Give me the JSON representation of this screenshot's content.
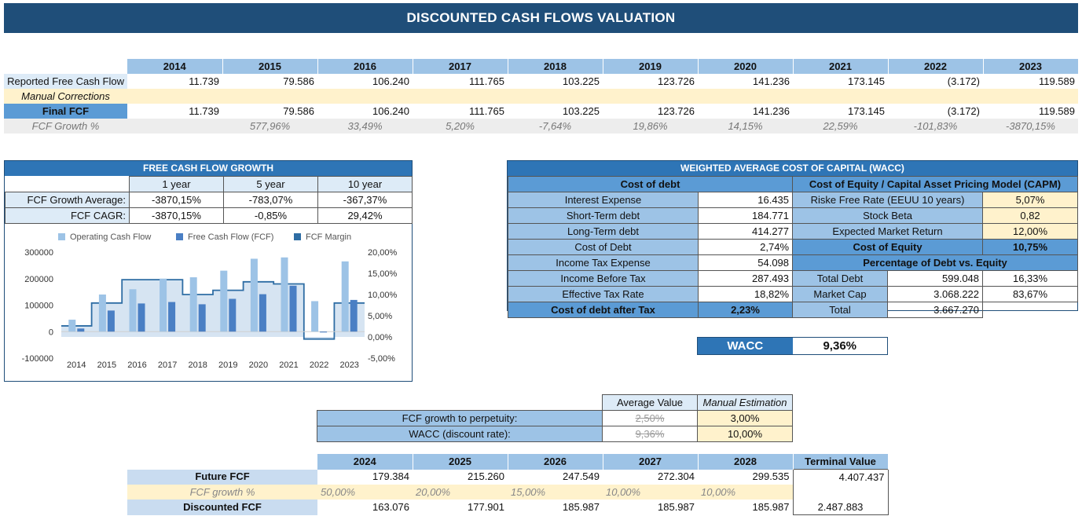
{
  "title": "DISCOUNTED CASH FLOWS VALUATION",
  "history": {
    "years": [
      "2014",
      "2015",
      "2016",
      "2017",
      "2018",
      "2019",
      "2020",
      "2021",
      "2022",
      "2023"
    ],
    "rows": [
      {
        "label": "Reported Free Cash Flow",
        "values": [
          "11.739",
          "79.586",
          "106.240",
          "111.765",
          "103.225",
          "123.726",
          "141.236",
          "173.145",
          "(3.172)",
          "119.589"
        ]
      },
      {
        "label": "Manual Corrections",
        "values": [
          "",
          "",
          "",
          "",
          "",
          "",
          "",
          "",
          "",
          ""
        ]
      },
      {
        "label": "Final FCF",
        "values": [
          "11.739",
          "79.586",
          "106.240",
          "111.765",
          "103.225",
          "123.726",
          "141.236",
          "173.145",
          "(3.172)",
          "119.589"
        ]
      },
      {
        "label": "FCF Growth %",
        "values": [
          "",
          "577,96%",
          "33,49%",
          "5,20%",
          "-7,64%",
          "19,86%",
          "14,15%",
          "22,59%",
          "-101,83%",
          "-3870,15%"
        ]
      }
    ]
  },
  "fcf_growth": {
    "title": "FREE CASH FLOW GROWTH",
    "columns": [
      "1 year",
      "5 year",
      "10 year"
    ],
    "rows": [
      {
        "label": "FCF Growth Average:",
        "values": [
          "-3870,15%",
          "-783,07%",
          "-367,37%"
        ]
      },
      {
        "label": "FCF CAGR:",
        "values": [
          "-3870,15%",
          "-0,85%",
          "29,42%"
        ]
      }
    ]
  },
  "chart_data": {
    "type": "bar",
    "categories": [
      "2014",
      "2015",
      "2016",
      "2017",
      "2018",
      "2019",
      "2020",
      "2021",
      "2022",
      "2023"
    ],
    "series": [
      {
        "name": "Operating Cash Flow",
        "type": "bar",
        "axis": "left",
        "color": "#9dc3e6",
        "values": [
          45000,
          140000,
          160000,
          200000,
          205000,
          230000,
          275000,
          280000,
          115000,
          265000
        ]
      },
      {
        "name": "Free Cash Flow (FCF)",
        "type": "bar",
        "axis": "left",
        "color": "#4a7fc4",
        "values": [
          11739,
          79586,
          106240,
          111765,
          103225,
          123726,
          141236,
          173145,
          -3172,
          119589
        ]
      },
      {
        "name": "FCF Margin",
        "type": "step-area",
        "axis": "right",
        "color": "#2e6da4",
        "values": [
          0.026,
          0.08,
          0.135,
          0.135,
          0.1,
          0.11,
          0.13,
          0.125,
          -0.005,
          0.08
        ]
      }
    ],
    "y_left": {
      "min": -100000,
      "max": 300000,
      "ticks": [
        "-100000",
        "0",
        "100000",
        "200000",
        "300000"
      ]
    },
    "y_right": {
      "min": -0.05,
      "max": 0.2,
      "ticks": [
        "-5,00%",
        "0,00%",
        "5,00%",
        "10,00%",
        "15,00%",
        "20,00%"
      ]
    },
    "legend": "top"
  },
  "wacc": {
    "title": "WEIGHTED AVERAGE COST OF CAPITAL (WACC)",
    "debt_header": "Cost of debt",
    "debt_rows": [
      {
        "label": "Interest Expense",
        "value": "16.435"
      },
      {
        "label": "Short-Term debt",
        "value": "184.771"
      },
      {
        "label": "Long-Term debt",
        "value": "414.277"
      },
      {
        "label": "Cost of Debt",
        "value": "2,74%"
      },
      {
        "label": "Income Tax Expense",
        "value": "54.098"
      },
      {
        "label": "Income Before Tax",
        "value": "287.493"
      },
      {
        "label": "Effective Tax Rate",
        "value": "18,82%"
      }
    ],
    "debt_after_tax": {
      "label": "Cost of debt after Tax",
      "value": "2,23%"
    },
    "equity_header": "Cost of Equity / Capital Asset Pricing Model (CAPM)",
    "equity_rows": [
      {
        "label": "Riske Free Rate (EEUU 10 years)",
        "value": "5,07%"
      },
      {
        "label": "Stock Beta",
        "value": "0,82"
      },
      {
        "label": "Expected Market Return",
        "value": "12,00%"
      }
    ],
    "cost_of_equity": {
      "label": "Cost of Equity",
      "value": "10,75%"
    },
    "pct_header": "Percentage of Debt vs. Equity",
    "pct_rows": [
      {
        "label": "Total Debt",
        "value": "599.048",
        "pct": "16,33%"
      },
      {
        "label": "Market Cap",
        "value": "3.068.222",
        "pct": "83,67%"
      },
      {
        "label": "Total",
        "value": "3.667.270",
        "pct": ""
      }
    ],
    "result": {
      "label": "WACC",
      "value": "9,36%"
    }
  },
  "assumptions": {
    "col_avg": "Average Value",
    "col_manual": "Manual Estimation",
    "rows": [
      {
        "label": "FCF growth to perpetuity:",
        "avg": "2,50%",
        "manual": "3,00%"
      },
      {
        "label": "WACC (discount rate):",
        "avg": "9,36%",
        "manual": "10,00%"
      }
    ]
  },
  "projection": {
    "years": [
      "2024",
      "2025",
      "2026",
      "2027",
      "2028"
    ],
    "terminal_header": "Terminal Value",
    "future": {
      "label": "Future FCF",
      "values": [
        "179.384",
        "215.260",
        "247.549",
        "272.304",
        "299.535"
      ],
      "terminal": "4.407.437"
    },
    "growth": {
      "label": "FCF growth %",
      "values": [
        "50,00%",
        "20,00%",
        "15,00%",
        "10,00%",
        "10,00%"
      ]
    },
    "discounted": {
      "label": "Discounted FCF",
      "values": [
        "163.076",
        "177.901",
        "185.987",
        "185.987",
        "185.987"
      ],
      "terminal": "2.487.883"
    }
  }
}
